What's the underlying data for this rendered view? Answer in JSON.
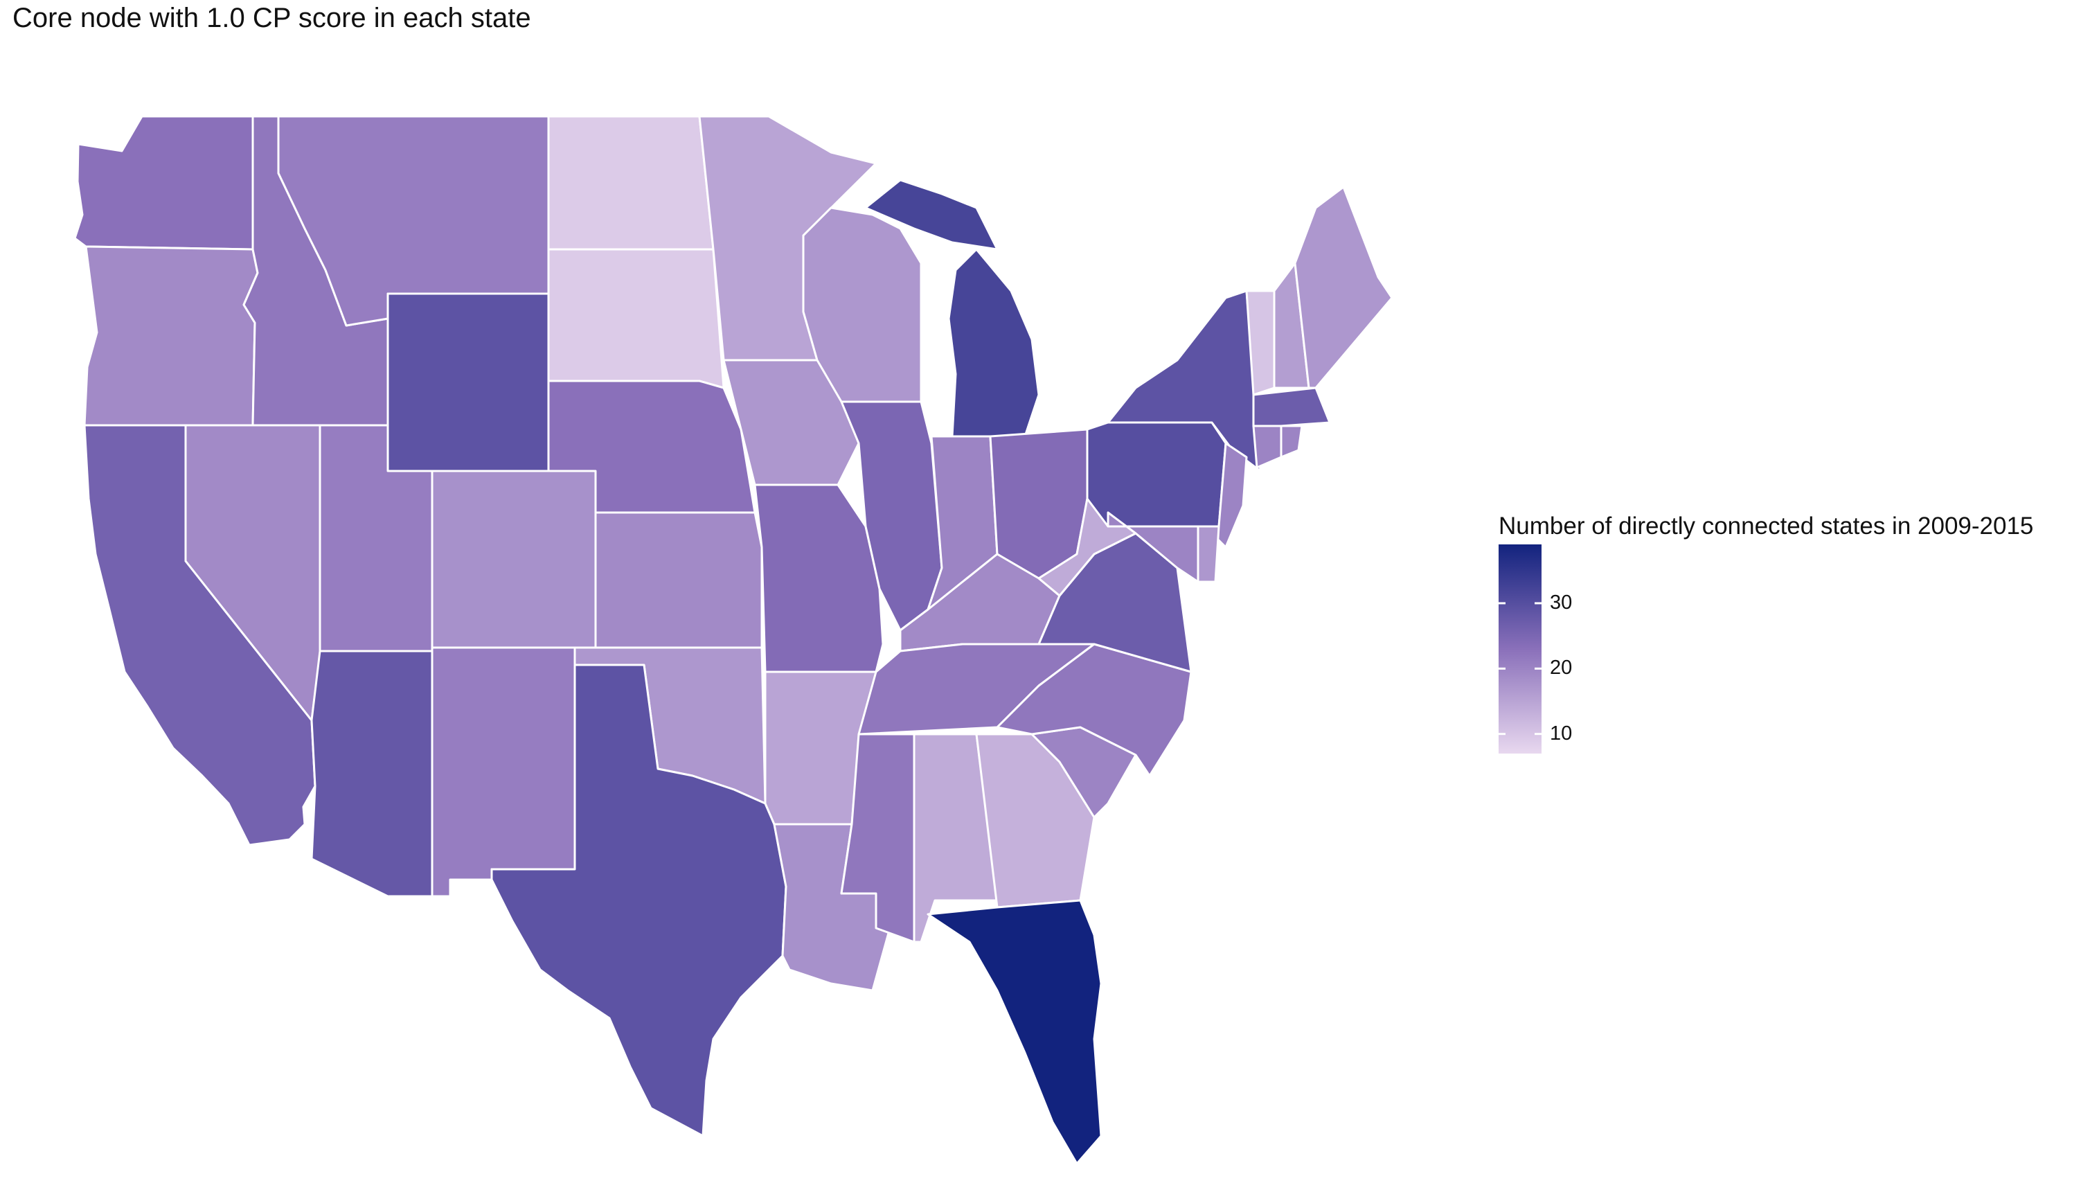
{
  "title": "Core node with 1.0 CP score in each state",
  "legend": {
    "title": "Number of directly connected states in 2009-2015",
    "min": 7,
    "max": 39,
    "color_low": "#e8d8ef",
    "color_high": "#12237e",
    "ticks": [
      {
        "value": 10,
        "label": "10"
      },
      {
        "value": 20,
        "label": "20"
      },
      {
        "value": 30,
        "label": "30"
      }
    ]
  },
  "map_data": {
    "type": "choropleth",
    "region": "Contiguous United States",
    "states": [
      {
        "id": "WA",
        "value": 23
      },
      {
        "id": "OR",
        "value": 19
      },
      {
        "id": "CA",
        "value": 26
      },
      {
        "id": "NV",
        "value": 19
      },
      {
        "id": "ID",
        "value": 22
      },
      {
        "id": "MT",
        "value": 21
      },
      {
        "id": "WY",
        "value": 29
      },
      {
        "id": "UT",
        "value": 21
      },
      {
        "id": "AZ",
        "value": 28
      },
      {
        "id": "CO",
        "value": 18
      },
      {
        "id": "NM",
        "value": 21
      },
      {
        "id": "ND",
        "value": 9
      },
      {
        "id": "SD",
        "value": 9
      },
      {
        "id": "NE",
        "value": 23
      },
      {
        "id": "KS",
        "value": 19
      },
      {
        "id": "OK",
        "value": 17
      },
      {
        "id": "TX",
        "value": 29
      },
      {
        "id": "MN",
        "value": 15
      },
      {
        "id": "IA",
        "value": 17
      },
      {
        "id": "MO",
        "value": 24
      },
      {
        "id": "AR",
        "value": 15
      },
      {
        "id": "LA",
        "value": 18
      },
      {
        "id": "WI",
        "value": 17
      },
      {
        "id": "IL",
        "value": 25
      },
      {
        "id": "MI",
        "value": 32
      },
      {
        "id": "IN",
        "value": 20
      },
      {
        "id": "OH",
        "value": 24
      },
      {
        "id": "KY",
        "value": 19
      },
      {
        "id": "TN",
        "value": 22
      },
      {
        "id": "MS",
        "value": 22
      },
      {
        "id": "AL",
        "value": 14
      },
      {
        "id": "GA",
        "value": 13
      },
      {
        "id": "FL",
        "value": 39
      },
      {
        "id": "SC",
        "value": 20
      },
      {
        "id": "NC",
        "value": 22
      },
      {
        "id": "VA",
        "value": 27
      },
      {
        "id": "WV",
        "value": 14
      },
      {
        "id": "PA",
        "value": 30
      },
      {
        "id": "NY",
        "value": 29
      },
      {
        "id": "VT",
        "value": 10
      },
      {
        "id": "NH",
        "value": 16
      },
      {
        "id": "ME",
        "value": 17
      },
      {
        "id": "MA",
        "value": 27
      },
      {
        "id": "RI",
        "value": 20
      },
      {
        "id": "CT",
        "value": 20
      },
      {
        "id": "NJ",
        "value": 20
      },
      {
        "id": "DE",
        "value": 17
      },
      {
        "id": "MD",
        "value": 20
      }
    ]
  }
}
